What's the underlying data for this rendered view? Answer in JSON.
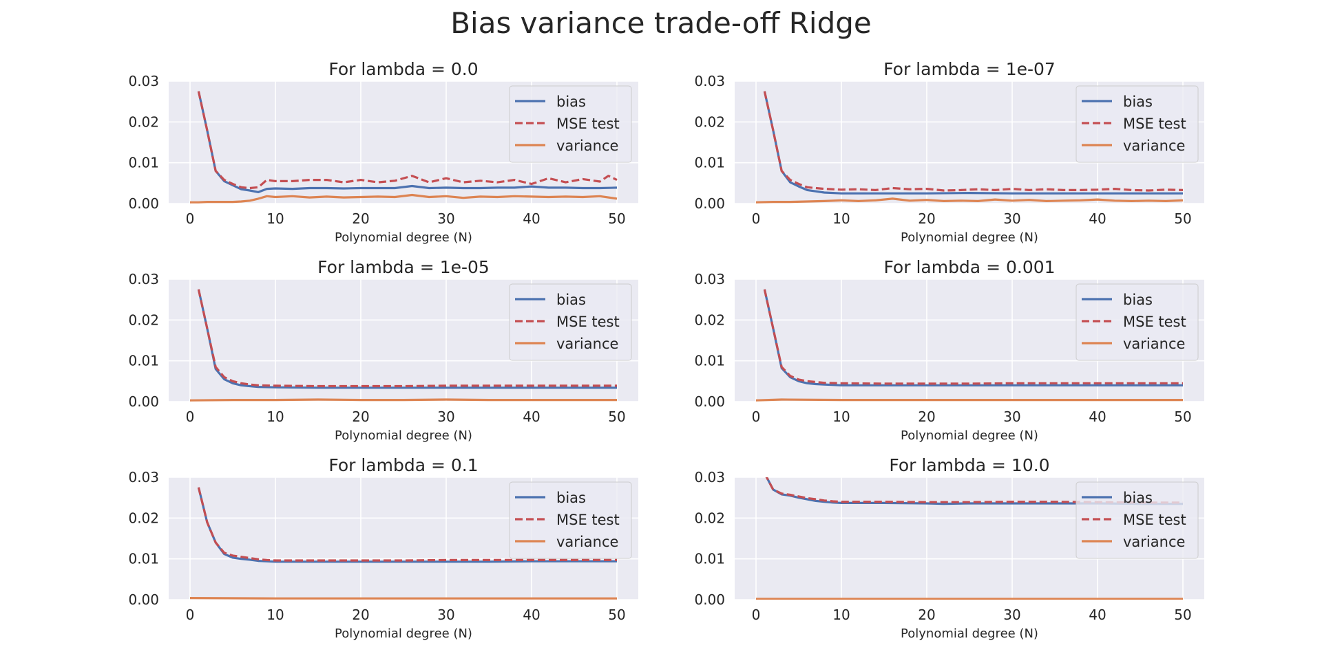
{
  "figure": {
    "title": "Bias variance trade-off Ridge"
  },
  "colors": {
    "bias": "#4c72b0",
    "mse": "#c44e52",
    "variance": "#dd8452",
    "plot_bg": "#eaeaf2",
    "grid": "#ffffff"
  },
  "chart_data": [
    {
      "type": "line",
      "title": "For lambda = 0.0",
      "xlabel": "Polynomial degree (N)",
      "ylabel": "",
      "xlim": [
        -2.5,
        52.5
      ],
      "ylim": [
        0,
        0.03
      ],
      "xticks": [
        0,
        10,
        20,
        30,
        40,
        50
      ],
      "yticks": [
        0.0,
        0.01,
        0.02,
        0.03
      ],
      "ytick_labels": [
        "0.00",
        "0.01",
        "0.02",
        "0.03"
      ],
      "grid": true,
      "legend": "top-right",
      "legend_entries": [
        "bias",
        "MSE test",
        "variance"
      ],
      "series": [
        {
          "name": "bias",
          "color": "#4c72b0",
          "dash": "solid",
          "x": [
            1,
            2,
            3,
            4,
            5,
            6,
            7,
            8,
            9,
            10,
            12,
            14,
            16,
            18,
            20,
            22,
            24,
            26,
            28,
            30,
            32,
            34,
            36,
            38,
            40,
            42,
            44,
            46,
            48,
            50
          ],
          "y": [
            0.0275,
            0.018,
            0.008,
            0.0055,
            0.0045,
            0.0035,
            0.0032,
            0.0028,
            0.0036,
            0.0037,
            0.0036,
            0.0038,
            0.0038,
            0.0037,
            0.0038,
            0.0038,
            0.0038,
            0.0043,
            0.0038,
            0.0039,
            0.0038,
            0.0038,
            0.0039,
            0.0039,
            0.0042,
            0.0039,
            0.0039,
            0.0038,
            0.0038,
            0.0039
          ]
        },
        {
          "name": "MSE test",
          "color": "#c44e52",
          "dash": "dashed",
          "x": [
            1,
            2,
            3,
            4,
            5,
            6,
            7,
            8,
            9,
            10,
            12,
            14,
            16,
            18,
            20,
            22,
            24,
            26,
            28,
            30,
            32,
            34,
            36,
            38,
            40,
            42,
            44,
            46,
            48,
            49,
            50
          ],
          "y": [
            0.0275,
            0.018,
            0.008,
            0.0058,
            0.0048,
            0.004,
            0.0038,
            0.004,
            0.0058,
            0.0055,
            0.0055,
            0.0058,
            0.0058,
            0.0052,
            0.0058,
            0.0052,
            0.0056,
            0.0068,
            0.0052,
            0.0062,
            0.0052,
            0.0056,
            0.0052,
            0.0058,
            0.0048,
            0.0062,
            0.0052,
            0.006,
            0.0054,
            0.0068,
            0.0058
          ]
        },
        {
          "name": "variance",
          "color": "#dd8452",
          "dash": "solid",
          "x": [
            0,
            1,
            2,
            3,
            4,
            5,
            6,
            7,
            8,
            9,
            10,
            12,
            14,
            16,
            18,
            20,
            22,
            24,
            26,
            28,
            30,
            32,
            34,
            36,
            38,
            40,
            42,
            44,
            46,
            48,
            50
          ],
          "y": [
            0.0003,
            0.0003,
            0.0004,
            0.0004,
            0.0004,
            0.0004,
            0.0005,
            0.0007,
            0.0012,
            0.0018,
            0.0016,
            0.0018,
            0.0015,
            0.0017,
            0.0015,
            0.0016,
            0.0017,
            0.0016,
            0.0021,
            0.0016,
            0.0018,
            0.0014,
            0.0017,
            0.0016,
            0.0018,
            0.0017,
            0.0016,
            0.0017,
            0.0016,
            0.0018,
            0.0012
          ]
        }
      ]
    },
    {
      "type": "line",
      "title": "For lambda = 1e-07",
      "xlabel": "Polynomial degree (N)",
      "ylabel": "",
      "xlim": [
        -2.5,
        52.5
      ],
      "ylim": [
        0,
        0.03
      ],
      "xticks": [
        0,
        10,
        20,
        30,
        40,
        50
      ],
      "yticks": [
        0.0,
        0.01,
        0.02,
        0.03
      ],
      "ytick_labels": [
        "0.00",
        "0.01",
        "0.02",
        "0.03"
      ],
      "grid": true,
      "legend": "top-right",
      "legend_entries": [
        "bias",
        "MSE test",
        "variance"
      ],
      "series": [
        {
          "name": "bias",
          "color": "#4c72b0",
          "dash": "solid",
          "x": [
            1,
            2,
            3,
            4,
            5,
            6,
            7,
            8,
            10,
            15,
            20,
            25,
            30,
            35,
            40,
            45,
            50
          ],
          "y": [
            0.0275,
            0.018,
            0.008,
            0.0052,
            0.0042,
            0.0033,
            0.003,
            0.0027,
            0.0025,
            0.0025,
            0.0025,
            0.0026,
            0.0025,
            0.0025,
            0.0025,
            0.0025,
            0.0025
          ]
        },
        {
          "name": "MSE test",
          "color": "#c44e52",
          "dash": "dashed",
          "x": [
            1,
            2,
            3,
            4,
            5,
            6,
            7,
            8,
            10,
            12,
            14,
            16,
            18,
            20,
            22,
            24,
            26,
            28,
            30,
            32,
            34,
            36,
            38,
            40,
            42,
            44,
            46,
            48,
            50
          ],
          "y": [
            0.0275,
            0.018,
            0.008,
            0.0058,
            0.0048,
            0.004,
            0.0038,
            0.0036,
            0.0034,
            0.0035,
            0.0033,
            0.0038,
            0.0035,
            0.0036,
            0.0032,
            0.0033,
            0.0035,
            0.0033,
            0.0036,
            0.0033,
            0.0035,
            0.0033,
            0.0033,
            0.0034,
            0.0036,
            0.0033,
            0.0032,
            0.0034,
            0.0033
          ]
        },
        {
          "name": "variance",
          "color": "#dd8452",
          "dash": "solid",
          "x": [
            0,
            2,
            4,
            6,
            8,
            10,
            12,
            14,
            16,
            18,
            20,
            22,
            24,
            26,
            28,
            30,
            32,
            34,
            36,
            38,
            40,
            42,
            44,
            46,
            48,
            50
          ],
          "y": [
            0.0003,
            0.0004,
            0.0004,
            0.0005,
            0.0006,
            0.0008,
            0.0006,
            0.0008,
            0.0012,
            0.0007,
            0.0009,
            0.0006,
            0.0007,
            0.0006,
            0.001,
            0.0007,
            0.0009,
            0.0006,
            0.0007,
            0.0008,
            0.001,
            0.0007,
            0.0006,
            0.0007,
            0.0006,
            0.0008
          ]
        }
      ]
    },
    {
      "type": "line",
      "title": "For lambda = 1e-05",
      "xlabel": "Polynomial degree (N)",
      "ylabel": "",
      "xlim": [
        -2.5,
        52.5
      ],
      "ylim": [
        0,
        0.03
      ],
      "xticks": [
        0,
        10,
        20,
        30,
        40,
        50
      ],
      "yticks": [
        0.0,
        0.01,
        0.02,
        0.03
      ],
      "ytick_labels": [
        "0.00",
        "0.01",
        "0.02",
        "0.03"
      ],
      "grid": true,
      "legend": "top-right",
      "legend_entries": [
        "bias",
        "MSE test",
        "variance"
      ],
      "series": [
        {
          "name": "bias",
          "color": "#4c72b0",
          "dash": "solid",
          "x": [
            1,
            2,
            3,
            4,
            5,
            6,
            7,
            8,
            10,
            15,
            20,
            25,
            30,
            35,
            40,
            45,
            50
          ],
          "y": [
            0.0275,
            0.018,
            0.008,
            0.0055,
            0.0045,
            0.004,
            0.0038,
            0.0036,
            0.0035,
            0.0034,
            0.0034,
            0.0034,
            0.0034,
            0.0034,
            0.0034,
            0.0034,
            0.0034
          ]
        },
        {
          "name": "MSE test",
          "color": "#c44e52",
          "dash": "dashed",
          "x": [
            1,
            2,
            3,
            4,
            5,
            6,
            7,
            8,
            10,
            15,
            20,
            25,
            30,
            35,
            40,
            45,
            50
          ],
          "y": [
            0.0275,
            0.018,
            0.0085,
            0.006,
            0.005,
            0.0045,
            0.0042,
            0.004,
            0.0039,
            0.0038,
            0.0038,
            0.0038,
            0.0039,
            0.0039,
            0.0039,
            0.0039,
            0.0039
          ]
        },
        {
          "name": "variance",
          "color": "#dd8452",
          "dash": "solid",
          "x": [
            0,
            5,
            10,
            15,
            20,
            25,
            30,
            35,
            40,
            45,
            50
          ],
          "y": [
            0.0003,
            0.0004,
            0.0004,
            0.0005,
            0.0004,
            0.0004,
            0.0005,
            0.0004,
            0.0004,
            0.0004,
            0.0004
          ]
        }
      ]
    },
    {
      "type": "line",
      "title": "For lambda = 0.001",
      "xlabel": "Polynomial degree (N)",
      "ylabel": "",
      "xlim": [
        -2.5,
        52.5
      ],
      "ylim": [
        0,
        0.03
      ],
      "xticks": [
        0,
        10,
        20,
        30,
        40,
        50
      ],
      "yticks": [
        0.0,
        0.01,
        0.02,
        0.03
      ],
      "ytick_labels": [
        "0.00",
        "0.01",
        "0.02",
        "0.03"
      ],
      "grid": true,
      "legend": "top-right",
      "legend_entries": [
        "bias",
        "MSE test",
        "variance"
      ],
      "series": [
        {
          "name": "bias",
          "color": "#4c72b0",
          "dash": "solid",
          "x": [
            1,
            2,
            3,
            4,
            5,
            6,
            7,
            8,
            10,
            15,
            20,
            25,
            30,
            35,
            40,
            45,
            50
          ],
          "y": [
            0.0275,
            0.018,
            0.0082,
            0.006,
            0.005,
            0.0045,
            0.0043,
            0.0042,
            0.004,
            0.004,
            0.004,
            0.004,
            0.004,
            0.004,
            0.004,
            0.004,
            0.004
          ]
        },
        {
          "name": "MSE test",
          "color": "#c44e52",
          "dash": "dashed",
          "x": [
            1,
            2,
            3,
            4,
            5,
            6,
            7,
            8,
            10,
            15,
            20,
            25,
            30,
            35,
            40,
            45,
            50
          ],
          "y": [
            0.0275,
            0.018,
            0.0085,
            0.0063,
            0.0054,
            0.005,
            0.0048,
            0.0046,
            0.0045,
            0.0044,
            0.0044,
            0.0044,
            0.0045,
            0.0045,
            0.0045,
            0.0045,
            0.0045
          ]
        },
        {
          "name": "variance",
          "color": "#dd8452",
          "dash": "solid",
          "x": [
            0,
            3,
            10,
            20,
            30,
            40,
            50
          ],
          "y": [
            0.0003,
            0.0005,
            0.0004,
            0.0004,
            0.0004,
            0.0004,
            0.0004
          ]
        }
      ]
    },
    {
      "type": "line",
      "title": "For lambda = 0.1",
      "xlabel": "Polynomial degree (N)",
      "ylabel": "",
      "xlim": [
        -2.5,
        52.5
      ],
      "ylim": [
        0,
        0.03
      ],
      "xticks": [
        0,
        10,
        20,
        30,
        40,
        50
      ],
      "yticks": [
        0.0,
        0.01,
        0.02,
        0.03
      ],
      "ytick_labels": [
        "0.00",
        "0.01",
        "0.02",
        "0.03"
      ],
      "grid": true,
      "legend": "top-right",
      "legend_entries": [
        "bias",
        "MSE test",
        "variance"
      ],
      "series": [
        {
          "name": "bias",
          "color": "#4c72b0",
          "dash": "solid",
          "x": [
            1,
            2,
            3,
            4,
            5,
            6,
            7,
            8,
            9,
            10,
            15,
            20,
            25,
            30,
            35,
            40,
            45,
            50
          ],
          "y": [
            0.0275,
            0.019,
            0.014,
            0.0112,
            0.0103,
            0.01,
            0.0098,
            0.0095,
            0.0094,
            0.0093,
            0.0093,
            0.0093,
            0.0093,
            0.0093,
            0.0093,
            0.0094,
            0.0094,
            0.0094
          ]
        },
        {
          "name": "MSE test",
          "color": "#c44e52",
          "dash": "dashed",
          "x": [
            1,
            2,
            3,
            4,
            5,
            6,
            7,
            8,
            9,
            10,
            15,
            20,
            25,
            30,
            35,
            40,
            45,
            50
          ],
          "y": [
            0.0275,
            0.019,
            0.014,
            0.0115,
            0.0108,
            0.0105,
            0.0102,
            0.0099,
            0.0097,
            0.0096,
            0.0096,
            0.0096,
            0.0096,
            0.0097,
            0.0097,
            0.0097,
            0.0097,
            0.0097
          ]
        },
        {
          "name": "variance",
          "color": "#dd8452",
          "dash": "solid",
          "x": [
            0,
            10,
            20,
            30,
            40,
            50
          ],
          "y": [
            0.0004,
            0.0003,
            0.0003,
            0.0003,
            0.0003,
            0.0003
          ]
        }
      ]
    },
    {
      "type": "line",
      "title": "For lambda = 10.0",
      "xlabel": "Polynomial degree (N)",
      "ylabel": "",
      "xlim": [
        -2.5,
        52.5
      ],
      "ylim": [
        0,
        0.03
      ],
      "xticks": [
        0,
        10,
        20,
        30,
        40,
        50
      ],
      "yticks": [
        0.0,
        0.01,
        0.02,
        0.03
      ],
      "ytick_labels": [
        "0.00",
        "0.01",
        "0.02",
        "0.03"
      ],
      "grid": true,
      "legend": "top-right",
      "legend_entries": [
        "bias",
        "MSE test",
        "variance"
      ],
      "series": [
        {
          "name": "bias",
          "color": "#4c72b0",
          "dash": "solid",
          "x": [
            1,
            2,
            3,
            4,
            5,
            6,
            7,
            8,
            9,
            10,
            15,
            20,
            22,
            25,
            30,
            35,
            40,
            45,
            50
          ],
          "y": [
            0.031,
            0.027,
            0.0258,
            0.0255,
            0.025,
            0.0246,
            0.0242,
            0.024,
            0.0238,
            0.0237,
            0.0237,
            0.0236,
            0.0235,
            0.0236,
            0.0236,
            0.0236,
            0.0236,
            0.0235,
            0.0235
          ]
        },
        {
          "name": "MSE test",
          "color": "#c44e52",
          "dash": "dashed",
          "x": [
            1,
            2,
            3,
            4,
            5,
            6,
            7,
            8,
            9,
            10,
            15,
            20,
            25,
            30,
            35,
            40,
            45,
            50
          ],
          "y": [
            0.031,
            0.027,
            0.026,
            0.0257,
            0.0253,
            0.0249,
            0.0246,
            0.0243,
            0.0241,
            0.024,
            0.024,
            0.0239,
            0.0239,
            0.024,
            0.024,
            0.0239,
            0.0238,
            0.0238
          ]
        },
        {
          "name": "variance",
          "color": "#dd8452",
          "dash": "solid",
          "x": [
            0,
            10,
            20,
            30,
            40,
            50
          ],
          "y": [
            0.0002,
            0.0002,
            0.0002,
            0.0002,
            0.0002,
            0.0002
          ]
        }
      ]
    }
  ]
}
